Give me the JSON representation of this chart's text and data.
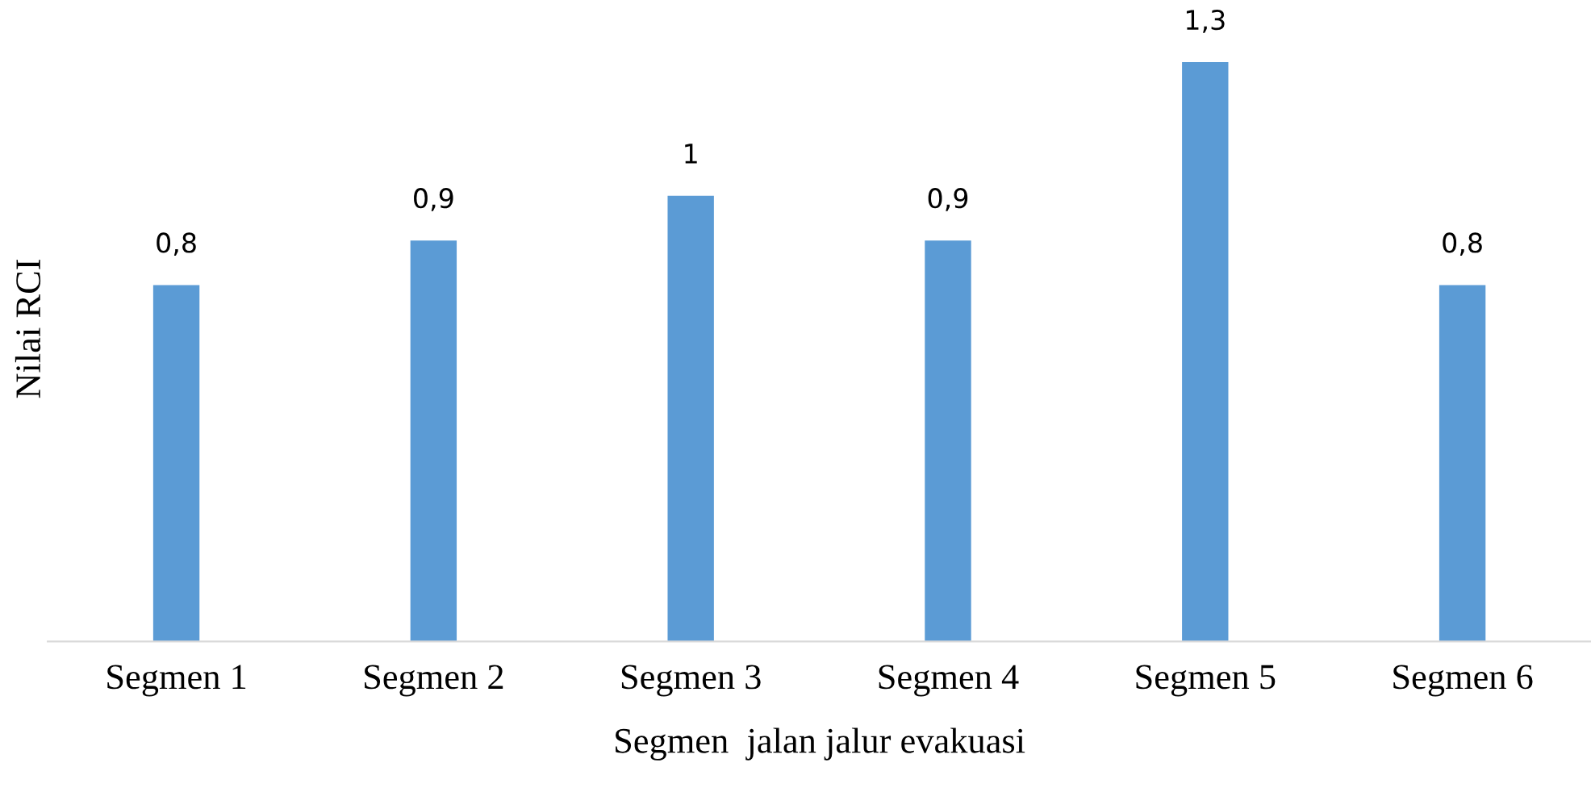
{
  "chart_data": {
    "type": "bar",
    "xlabel": "Segmen  jalan jalur evakuasi",
    "ylabel": "Nilai RCI",
    "categories": [
      "Segmen 1",
      "Segmen 2",
      "Segmen 3",
      "Segmen 4",
      "Segmen 5",
      "Segmen 6"
    ],
    "values": [
      0.8,
      0.9,
      1,
      0.9,
      1.3,
      0.8
    ],
    "value_labels": [
      "0,8",
      "0,9",
      "1",
      "0,9",
      "1,3",
      "0,8"
    ],
    "color": "#5b9bd5",
    "grid": false,
    "legend": false
  }
}
